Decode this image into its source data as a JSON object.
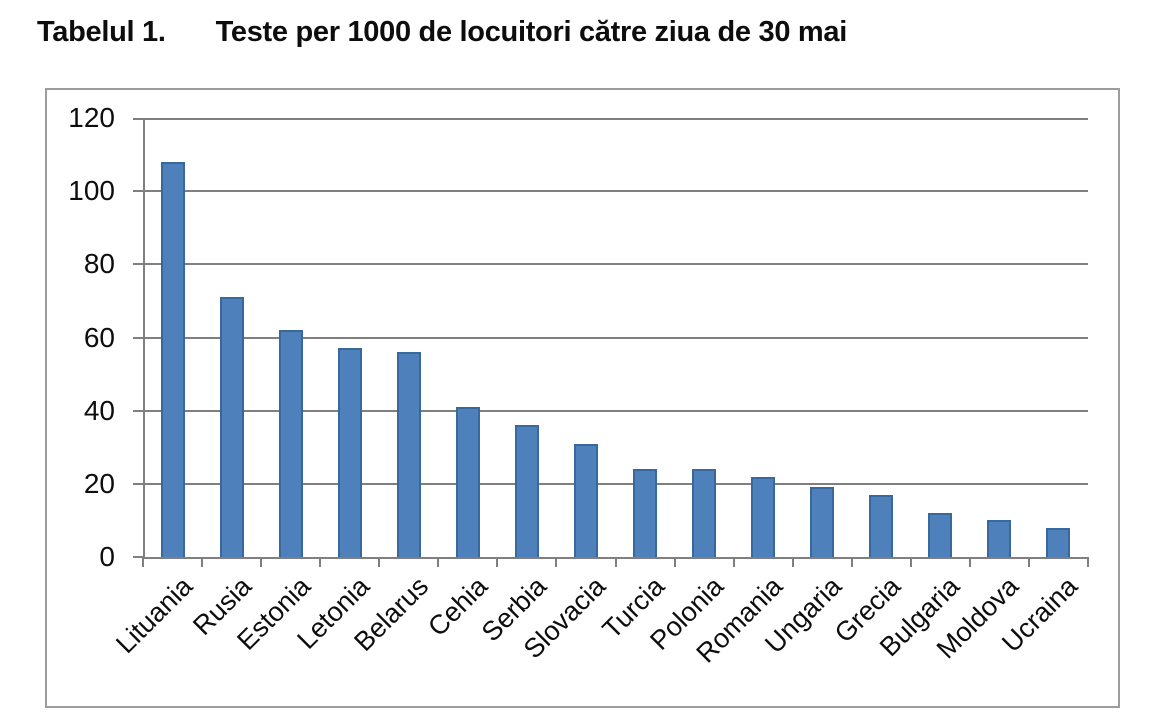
{
  "title": {
    "label": "Tabelul 1.",
    "text": "Teste per 1000 de locuitori către ziua de 30 mai"
  },
  "colors": {
    "bar_fill": "#4e80bc",
    "bar_border": "#38689c",
    "gridline": "#7f7f7f",
    "chart_border": "#9d9d9d",
    "text": "#0d0d0d",
    "background": "#ffffff"
  },
  "chart_data": {
    "type": "bar",
    "title": "Tabelul 1.   Teste per 1000 de locuitori către ziua de 30 mai",
    "categories": [
      "Lituania",
      "Rusia",
      "Estonia",
      "Letonia",
      "Belarus",
      "Cehia",
      "Serbia",
      "Slovacia",
      "Turcia",
      "Polonia",
      "Romania",
      "Ungaria",
      "Grecia",
      "Bulgaria",
      "Moldova",
      "Ucraina"
    ],
    "values": [
      108,
      71,
      62,
      57,
      56,
      41,
      36,
      31,
      24,
      24,
      22,
      19,
      17,
      12,
      10,
      8
    ],
    "xlabel": "",
    "ylabel": "",
    "ylim": [
      0,
      120
    ],
    "yticks": [
      0,
      20,
      40,
      60,
      80,
      100,
      120
    ],
    "grid": true,
    "legend": false,
    "xlabel_rotation_deg": -45
  }
}
